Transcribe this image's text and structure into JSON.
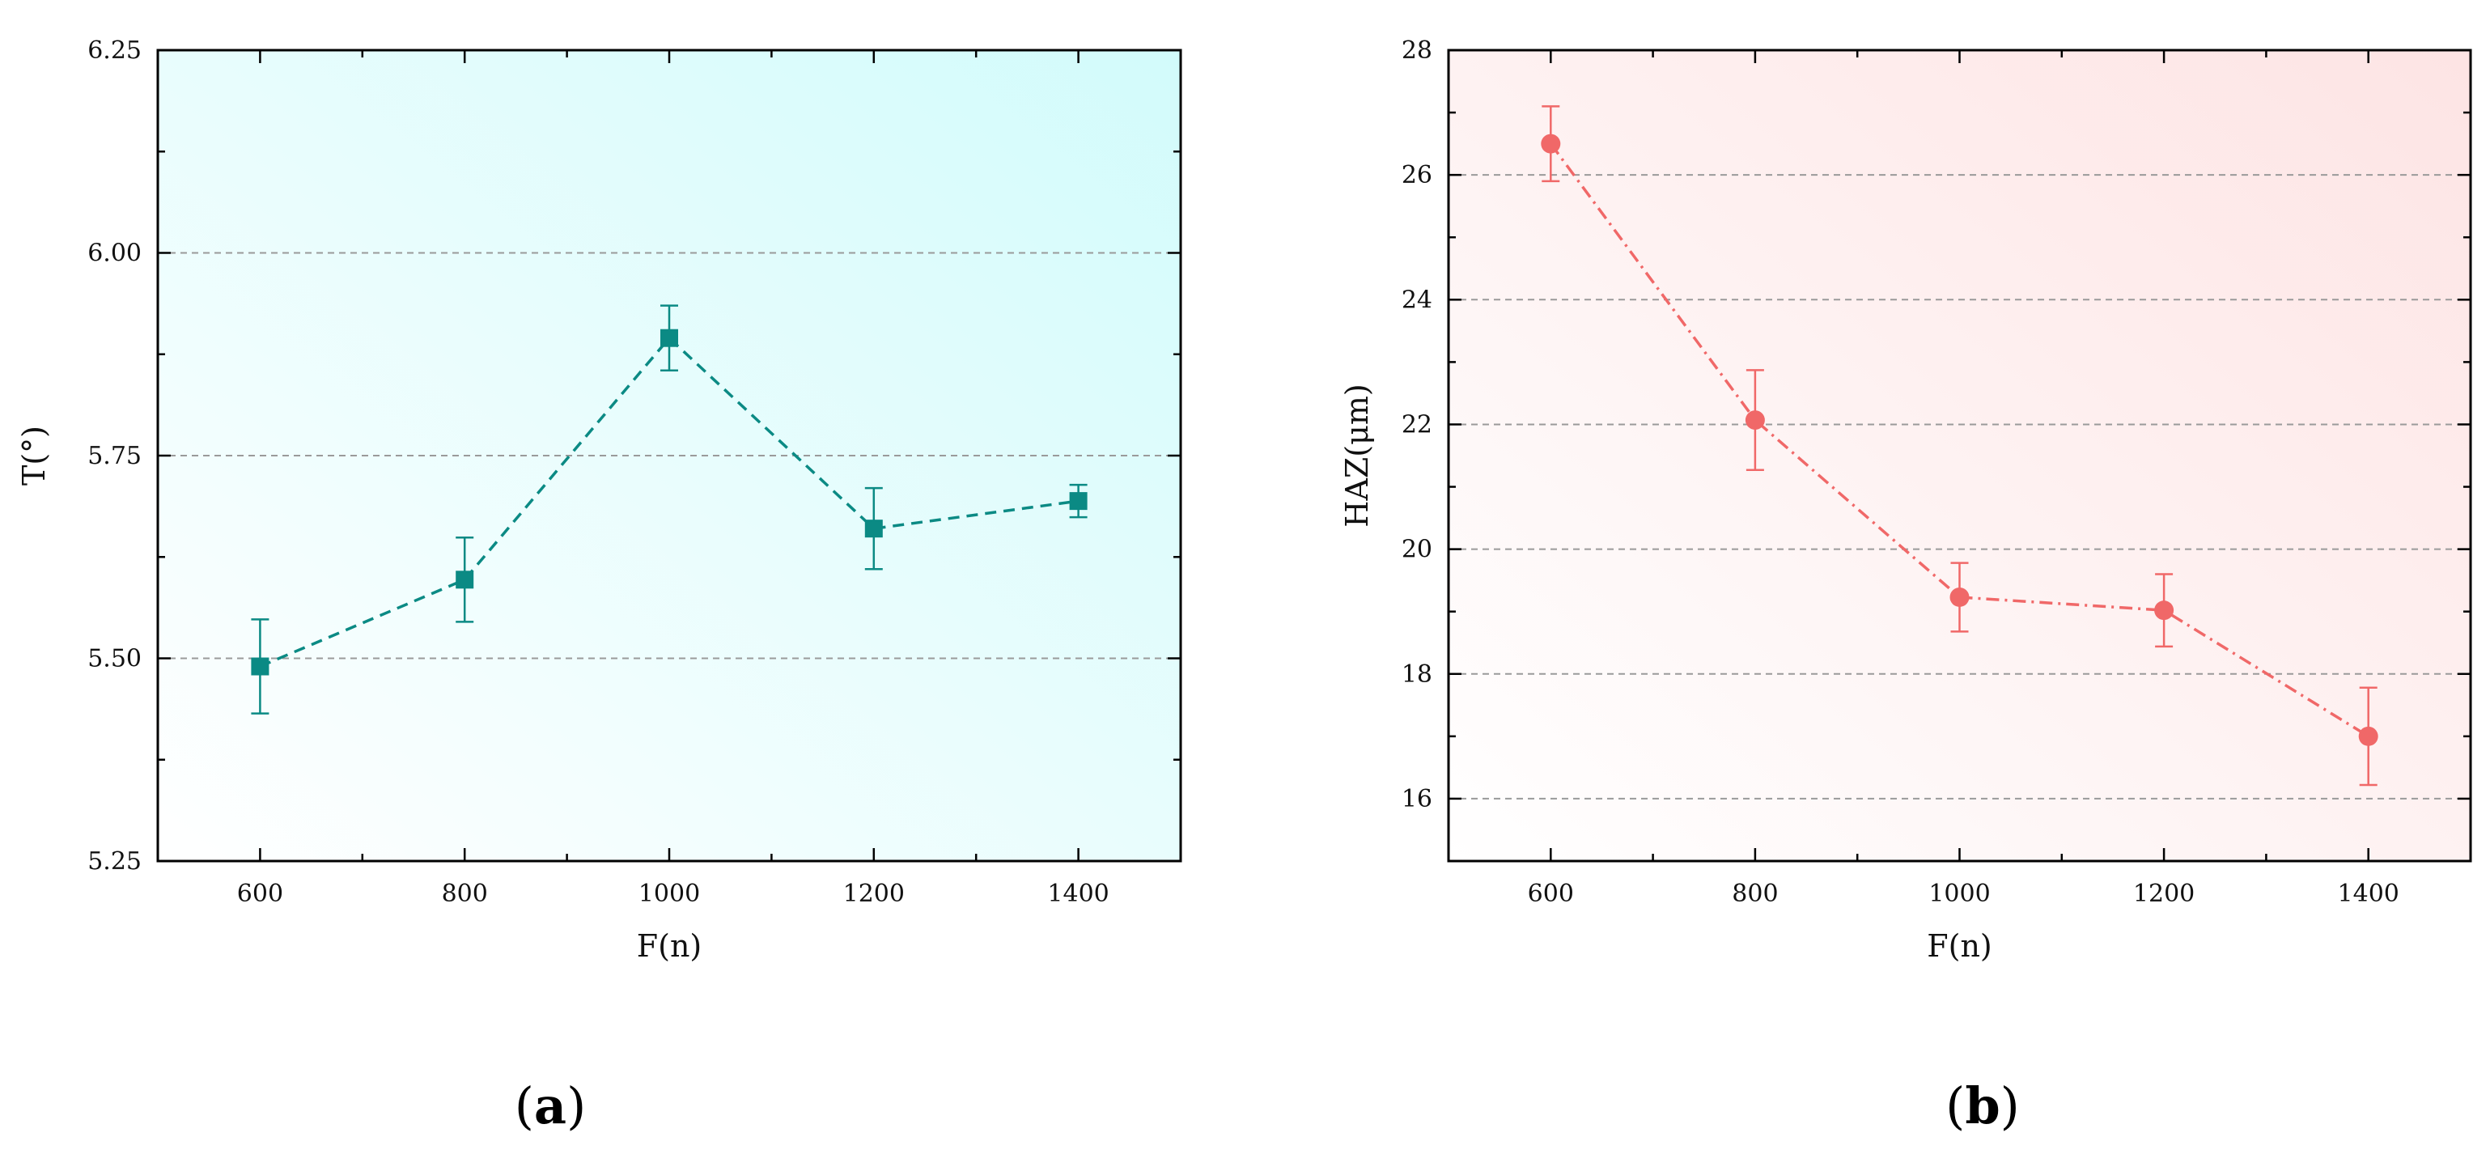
{
  "chart_data": [
    {
      "panel": "a",
      "type": "line",
      "xlabel": "F(n)",
      "ylabel": "T(°)",
      "xlim": [
        500,
        1500
      ],
      "ylim": [
        5.25,
        6.25
      ],
      "x_ticks": [
        600,
        800,
        1000,
        1200,
        1400
      ],
      "x_tick_labels": [
        "600",
        "800",
        "1000",
        "1200",
        "1400"
      ],
      "y_ticks": [
        5.25,
        5.5,
        5.75,
        6.0,
        6.25
      ],
      "y_tick_labels": [
        "5.25",
        "5.50",
        "5.75",
        "6.00",
        "6.25"
      ],
      "grid": "horizontal dashed",
      "background": [
        "#ffffff",
        "#d2fbfb"
      ],
      "series": [
        {
          "color": "#0b8a84",
          "marker": "square",
          "line_style": "dashed",
          "x": [
            600,
            800,
            1000,
            1200,
            1400
          ],
          "y": [
            5.49,
            5.597,
            5.895,
            5.66,
            5.694
          ],
          "error": [
            0.058,
            0.052,
            0.04,
            0.05,
            0.02
          ]
        }
      ]
    },
    {
      "panel": "b",
      "type": "line",
      "xlabel": "F(n)",
      "ylabel": "HAZ(μm)",
      "xlim": [
        500,
        1500
      ],
      "ylim": [
        15,
        28
      ],
      "x_ticks": [
        600,
        800,
        1000,
        1200,
        1400
      ],
      "x_tick_labels": [
        "600",
        "800",
        "1000",
        "1200",
        "1400"
      ],
      "y_ticks": [
        16,
        18,
        20,
        22,
        24,
        26,
        28
      ],
      "y_tick_labels": [
        "16",
        "18",
        "20",
        "22",
        "24",
        "26",
        "28"
      ],
      "grid": "horizontal dashed",
      "background": [
        "#ffffff",
        "#fde4e4"
      ],
      "series": [
        {
          "color": "#f06868",
          "marker": "circle",
          "line_style": "dash-dot",
          "x": [
            600,
            800,
            1000,
            1200,
            1400
          ],
          "y": [
            26.5,
            22.07,
            19.23,
            19.02,
            17.0
          ],
          "error": [
            0.6,
            0.8,
            0.55,
            0.58,
            0.78
          ]
        }
      ]
    }
  ],
  "panel_labels": [
    "(a)",
    "(b)"
  ]
}
